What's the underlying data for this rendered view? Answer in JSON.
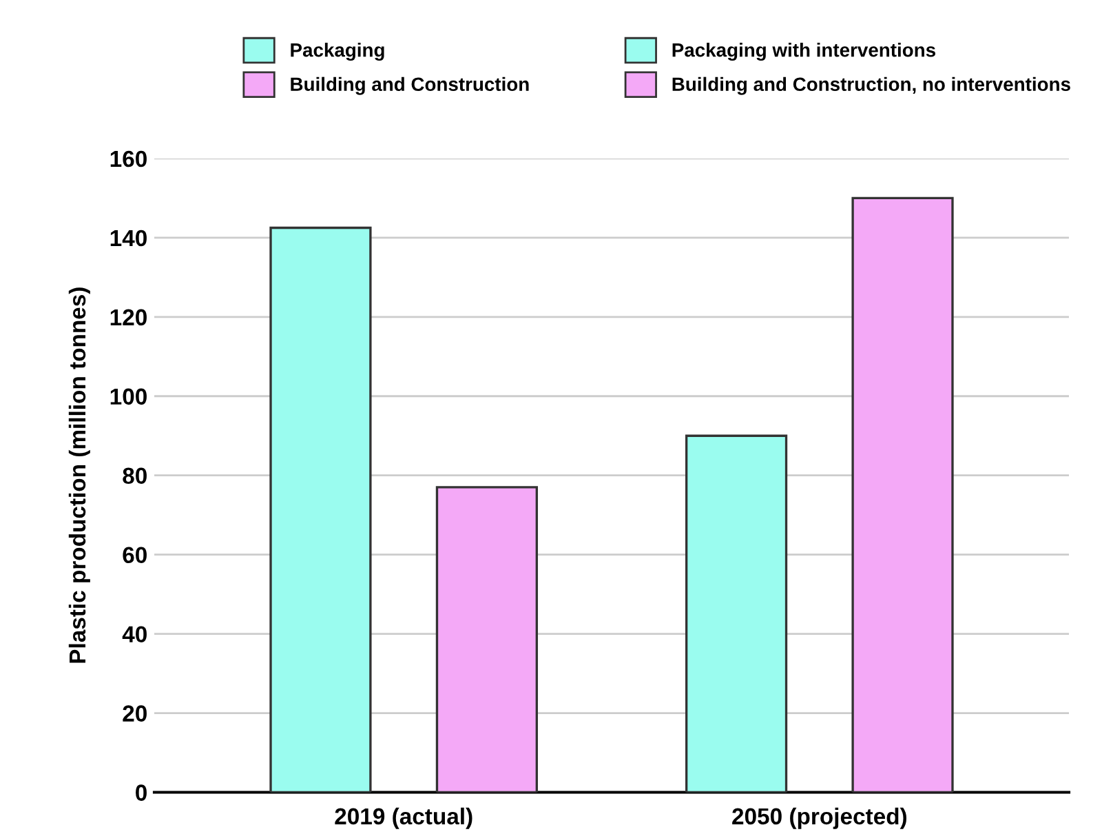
{
  "chart_data": {
    "type": "bar",
    "ylabel": "Plastic production (million tonnes)",
    "categories": [
      "2019 (actual)",
      "2050 (projected)"
    ],
    "series": [
      {
        "name": "Packaging",
        "color": "#9afcef",
        "values": [
          142.5,
          null
        ]
      },
      {
        "name": "Building and Construction",
        "color": "#f4a9f7",
        "values": [
          77,
          null
        ]
      },
      {
        "name": "Packaging with interventions",
        "color": "#9afcef",
        "values": [
          null,
          90
        ]
      },
      {
        "name": "Building and Construction, no interventions",
        "color": "#f4a9f7",
        "values": [
          null,
          150
        ]
      }
    ],
    "ylim": [
      0,
      160
    ],
    "yticks": [
      0,
      20,
      40,
      60,
      80,
      100,
      120,
      140,
      160
    ],
    "grid": "y",
    "legend": "top"
  }
}
